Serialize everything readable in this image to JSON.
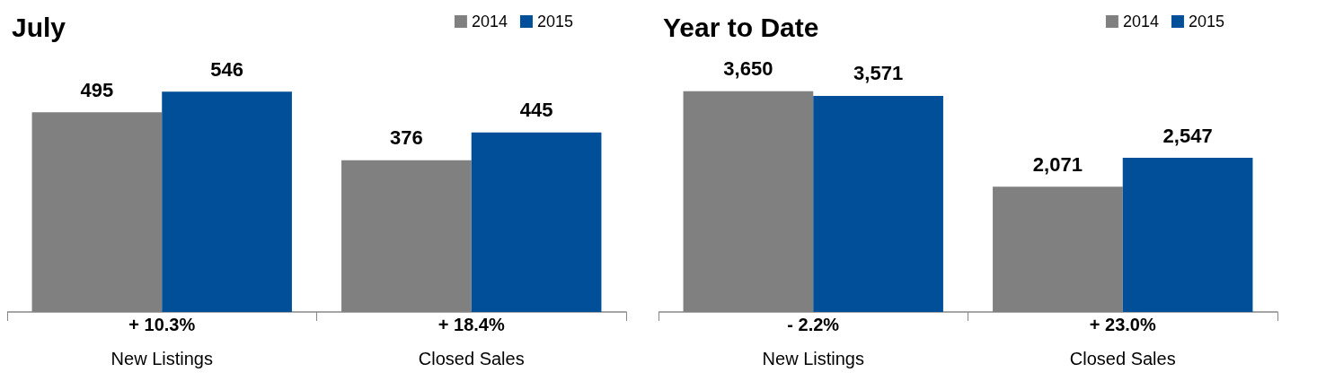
{
  "chart_data": [
    {
      "type": "bar",
      "title": "July",
      "categories": [
        "New Listings",
        "Closed Sales"
      ],
      "series": [
        {
          "name": "2014",
          "color": "#808080",
          "values": [
            495,
            376
          ]
        },
        {
          "name": "2015",
          "color": "#004f98",
          "values": [
            546,
            445
          ]
        }
      ],
      "annotations": [
        "+ 10.3%",
        "+ 18.4%"
      ],
      "data_labels": true,
      "legend": "top right",
      "grid": false
    },
    {
      "type": "bar",
      "title": "Year to Date",
      "categories": [
        "New Listings",
        "Closed Sales"
      ],
      "series": [
        {
          "name": "2014",
          "color": "#808080",
          "values": [
            3650,
            2071
          ],
          "value_labels": [
            "3,650",
            "2,071"
          ]
        },
        {
          "name": "2015",
          "color": "#004f98",
          "values": [
            3571,
            2547
          ],
          "value_labels": [
            "3,571",
            "2,547"
          ]
        }
      ],
      "annotations": [
        "- 2.2%",
        "+ 23.0%"
      ],
      "legend": "top right",
      "grid": false
    }
  ]
}
